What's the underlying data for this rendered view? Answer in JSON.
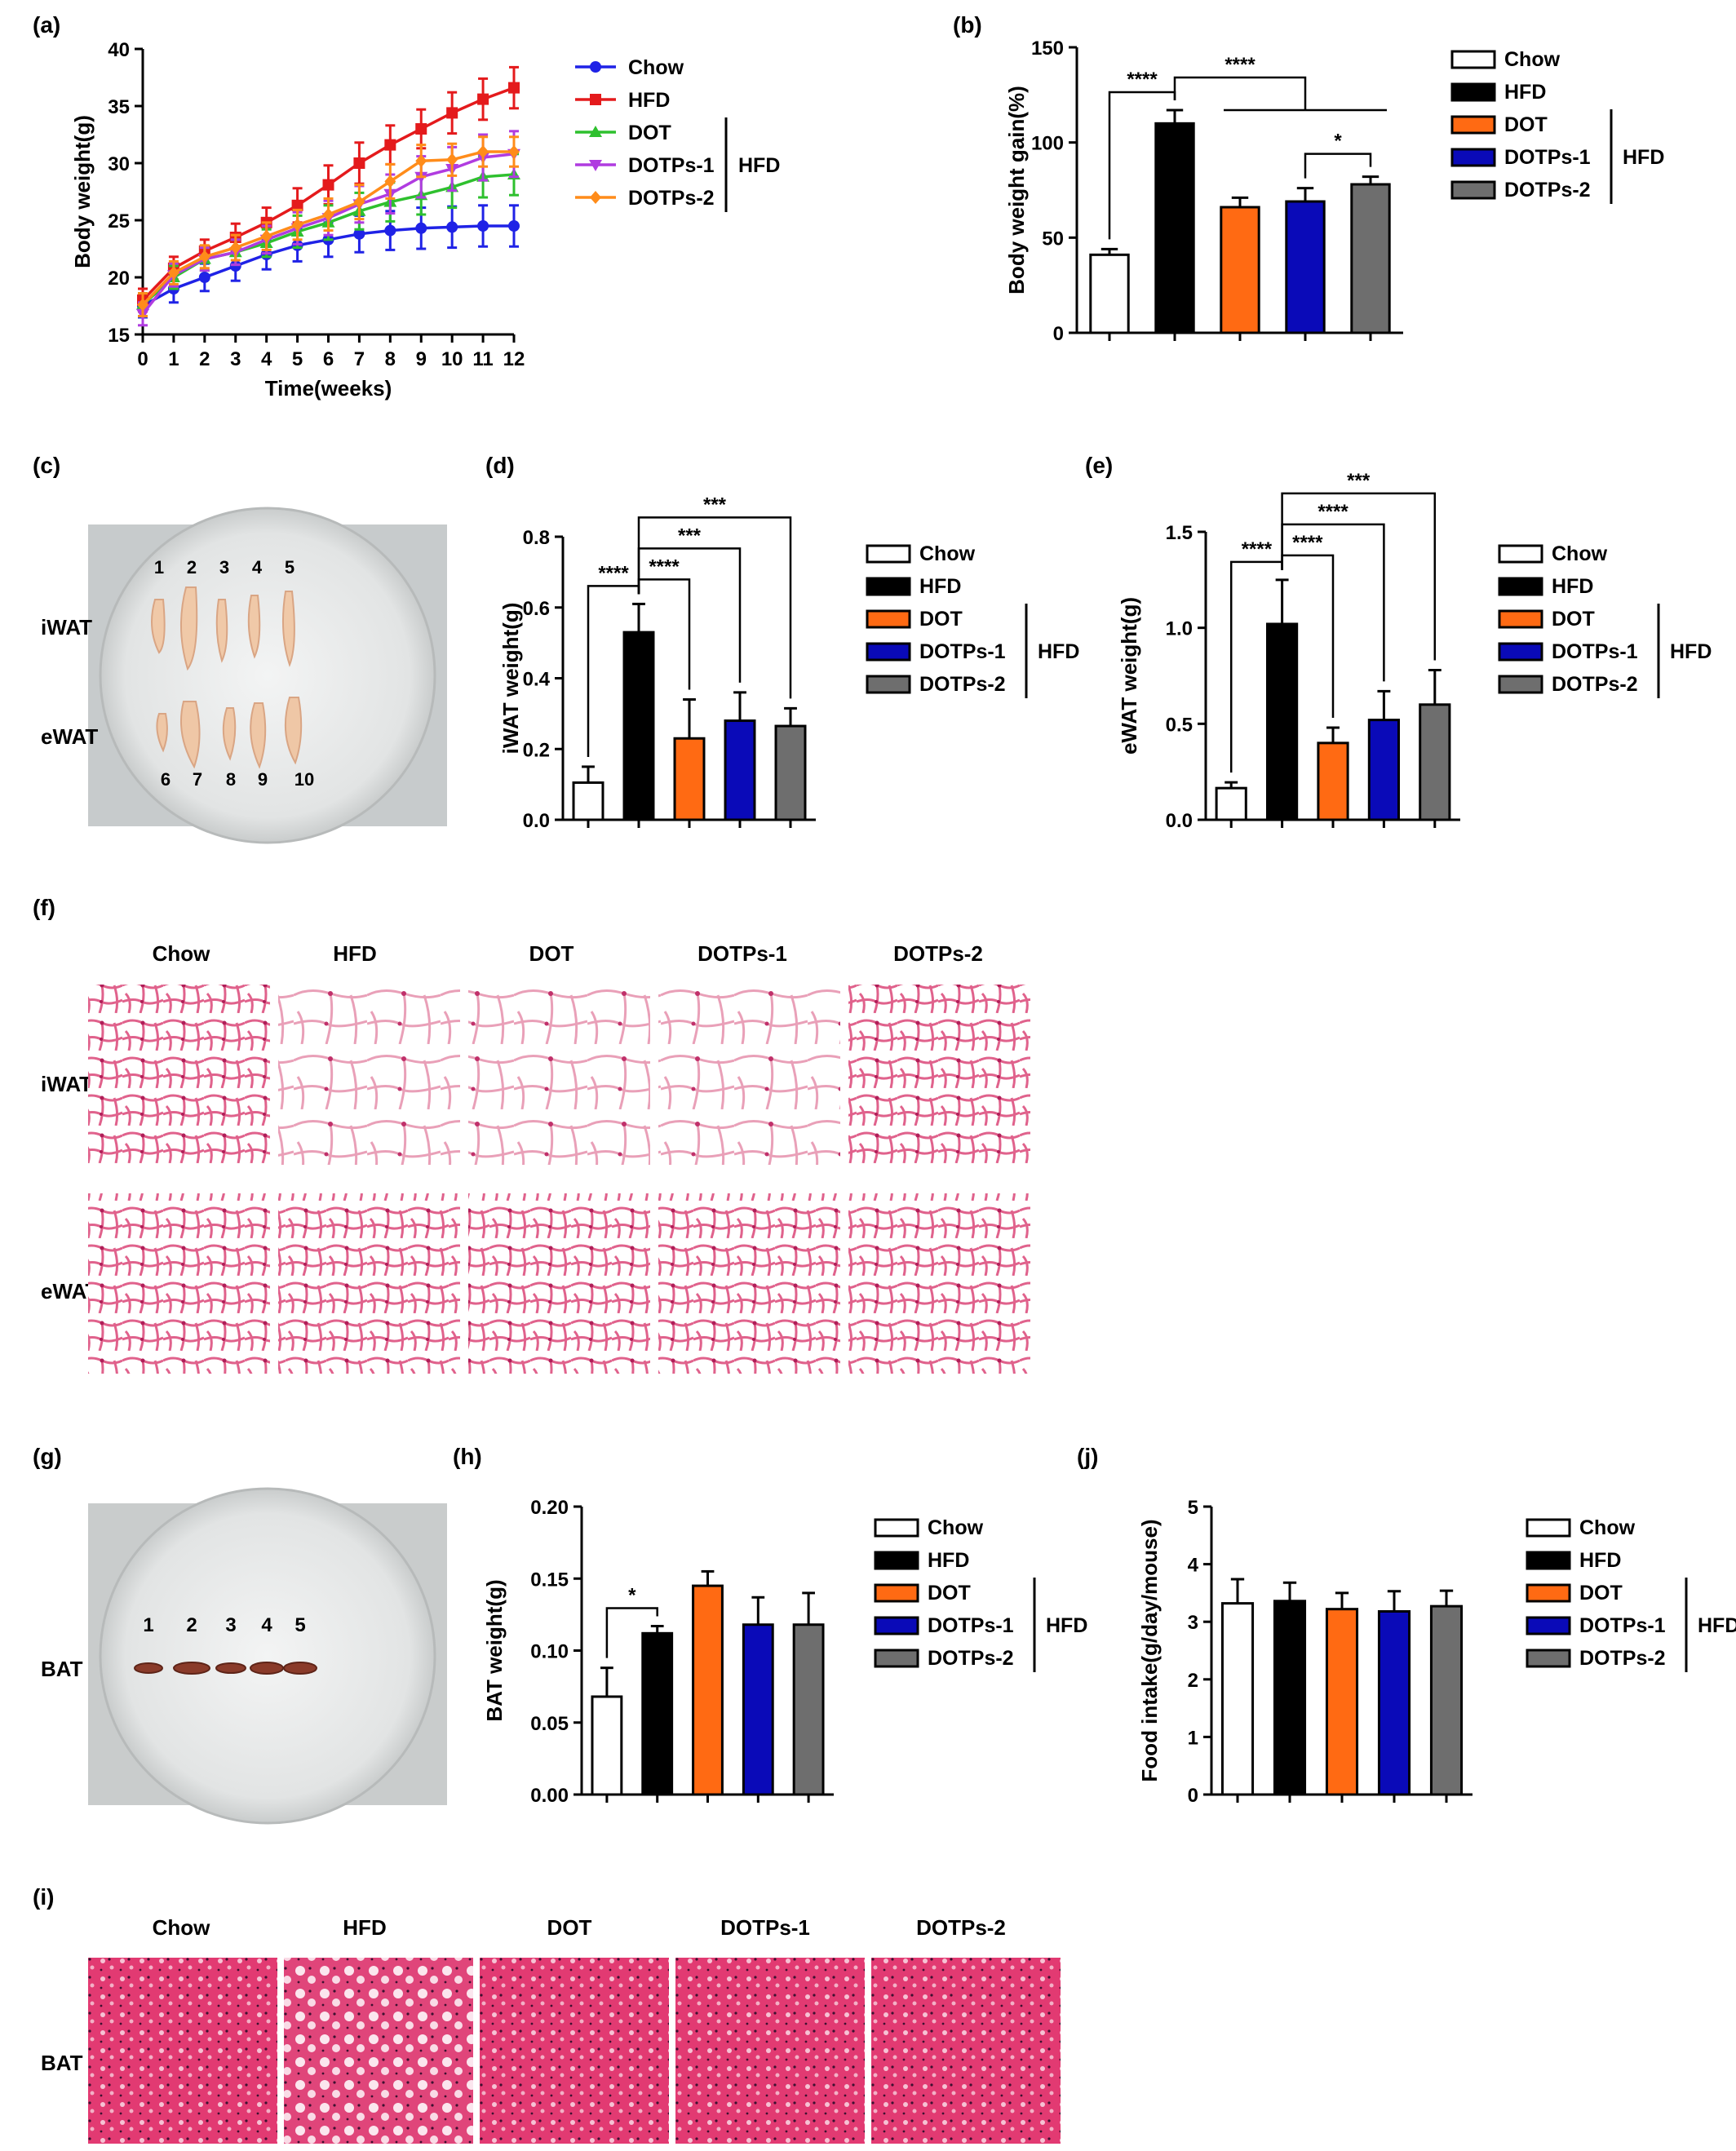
{
  "groups": [
    "Chow",
    "HFD",
    "DOT",
    "DOTPs-1",
    "DOTPs-2"
  ],
  "hfd_bracket_label": "HFD",
  "colors": {
    "Chow": "#ffffff",
    "HFD": "#000000",
    "DOT": "#ff6a13",
    "DOTPs-1": "#0a0ab8",
    "DOTPs-2": "#6e6e6e"
  },
  "line_colors": {
    "Chow": "#1f22e6",
    "HFD": "#e41a1c",
    "DOT": "#2ec02e",
    "DOTPs-1": "#b03ce0",
    "DOTPs-2": "#ff8c1a"
  },
  "panels": {
    "a": "(a)",
    "b": "(b)",
    "c": "(c)",
    "d": "(d)",
    "e": "(e)",
    "f": "(f)",
    "g": "(g)",
    "h": "(h)",
    "i": "(i)",
    "j": "(j)"
  },
  "photo_c": {
    "row_labels": [
      "iWAT",
      "eWAT"
    ],
    "top_numbers": [
      "1",
      "2",
      "3",
      "4",
      "5"
    ],
    "bottom_numbers": [
      "6",
      "7",
      "8",
      "9",
      "10"
    ]
  },
  "photo_g": {
    "row_label": "BAT",
    "numbers": [
      "1",
      "2",
      "3",
      "4",
      "5"
    ]
  },
  "histology_f": {
    "columns": [
      "Chow",
      "HFD",
      "DOT",
      "DOTPs-1",
      "DOTPs-2"
    ],
    "rows": [
      "iWAT",
      "eWAT"
    ]
  },
  "histology_i": {
    "columns": [
      "Chow",
      "HFD",
      "DOT",
      "DOTPs-1",
      "DOTPs-2"
    ],
    "rows": [
      "BAT"
    ]
  },
  "chart_data": [
    {
      "id": "a",
      "type": "line",
      "xlabel": "Time(weeks)",
      "ylabel": "Body weight(g)",
      "xlim": [
        0,
        12
      ],
      "ylim": [
        15,
        40
      ],
      "xticks": [
        "0",
        "1",
        "2",
        "3",
        "4",
        "5",
        "6",
        "7",
        "8",
        "9",
        "10",
        "11",
        "12"
      ],
      "yticks": [
        "15",
        "20",
        "25",
        "30",
        "35",
        "40"
      ],
      "x": [
        0,
        1,
        2,
        3,
        4,
        5,
        6,
        7,
        8,
        9,
        10,
        11,
        12
      ],
      "series": [
        {
          "name": "Chow",
          "marker": "circle",
          "values": [
            17.5,
            19,
            20,
            21,
            22,
            22.8,
            23.3,
            23.8,
            24.1,
            24.3,
            24.4,
            24.5,
            24.5
          ],
          "errors": [
            1,
            1.2,
            1.2,
            1.3,
            1.3,
            1.4,
            1.5,
            1.6,
            1.7,
            1.8,
            1.8,
            1.8,
            1.8
          ]
        },
        {
          "name": "HFD",
          "marker": "square",
          "values": [
            18,
            20.8,
            22.3,
            23.5,
            24.8,
            26.3,
            28.1,
            30,
            31.6,
            33,
            34.4,
            35.6,
            36.6
          ],
          "errors": [
            1,
            1,
            1,
            1.2,
            1.3,
            1.5,
            1.7,
            1.8,
            1.7,
            1.7,
            1.8,
            1.8,
            1.8
          ]
        },
        {
          "name": "DOT",
          "marker": "triangle-up",
          "values": [
            17.6,
            20,
            21.6,
            22.2,
            23,
            24,
            24.8,
            25.8,
            26.6,
            27.2,
            27.9,
            28.8,
            29
          ],
          "errors": [
            1,
            1,
            1,
            1.1,
            1.2,
            1.4,
            1.5,
            1.6,
            1.7,
            1.7,
            1.8,
            1.8,
            1.8
          ]
        },
        {
          "name": "DOTPs-1",
          "marker": "triangle-down",
          "values": [
            16.8,
            20.2,
            21.6,
            22.2,
            23.3,
            24.3,
            25.2,
            26.4,
            27.3,
            28.8,
            29.5,
            30.5,
            30.8
          ],
          "errors": [
            1,
            1,
            1,
            1.1,
            1.2,
            1.4,
            1.5,
            1.6,
            1.7,
            1.8,
            1.9,
            2,
            2
          ]
        },
        {
          "name": "DOTPs-2",
          "marker": "diamond",
          "values": [
            17.6,
            20.4,
            21.8,
            22.6,
            23.6,
            24.6,
            25.5,
            26.6,
            28.4,
            30.2,
            30.3,
            31,
            31
          ],
          "errors": [
            1,
            1,
            1,
            1.1,
            1.2,
            1.3,
            1.4,
            1.5,
            1.5,
            1.4,
            1.4,
            1.3,
            1.3
          ]
        }
      ]
    },
    {
      "id": "b",
      "type": "bar",
      "ylabel": "Body weight gain(%)",
      "ylim": [
        0,
        150
      ],
      "yticks": [
        "0",
        "50",
        "100",
        "150"
      ],
      "categories": [
        "Chow",
        "HFD",
        "DOT",
        "DOTPs-1",
        "DOTPs-2"
      ],
      "values": [
        41,
        110,
        66,
        69,
        78
      ],
      "errors": [
        3,
        7,
        5,
        7,
        4
      ],
      "significance": [
        {
          "from": 0,
          "to": 1,
          "label": "****"
        },
        {
          "from": 1,
          "to": [
            2,
            3,
            4
          ],
          "label": "****"
        },
        {
          "from": 3,
          "to": 4,
          "label": "*"
        }
      ]
    },
    {
      "id": "d",
      "type": "bar",
      "ylabel": "iWAT weight(g)",
      "ylim": [
        0,
        0.8
      ],
      "yticks": [
        "0.0",
        "0.2",
        "0.4",
        "0.6",
        "0.8"
      ],
      "categories": [
        "Chow",
        "HFD",
        "DOT",
        "DOTPs-1",
        "DOTPs-2"
      ],
      "values": [
        0.105,
        0.53,
        0.23,
        0.28,
        0.265
      ],
      "errors": [
        0.045,
        0.08,
        0.11,
        0.08,
        0.05
      ],
      "significance": [
        {
          "from": 0,
          "to": 1,
          "label": "****"
        },
        {
          "from": 1,
          "to": 2,
          "label": "****"
        },
        {
          "from": 1,
          "to": 3,
          "label": "***"
        },
        {
          "from": 1,
          "to": 4,
          "label": "***"
        }
      ]
    },
    {
      "id": "e",
      "type": "bar",
      "ylabel": "eWAT weight(g)",
      "ylim": [
        0,
        1.5
      ],
      "yticks": [
        "0.0",
        "0.5",
        "1.0",
        "1.5"
      ],
      "categories": [
        "Chow",
        "HFD",
        "DOT",
        "DOTPs-1",
        "DOTPs-2"
      ],
      "values": [
        0.165,
        1.02,
        0.4,
        0.52,
        0.6
      ],
      "errors": [
        0.03,
        0.23,
        0.08,
        0.15,
        0.18
      ],
      "significance": [
        {
          "from": 0,
          "to": 1,
          "label": "****"
        },
        {
          "from": 1,
          "to": 2,
          "label": "****"
        },
        {
          "from": 1,
          "to": 3,
          "label": "****"
        },
        {
          "from": 1,
          "to": 4,
          "label": "***"
        }
      ]
    },
    {
      "id": "h",
      "type": "bar",
      "ylabel": "BAT weight(g)",
      "ylim": [
        0,
        0.2
      ],
      "yticks": [
        "0.00",
        "0.05",
        "0.10",
        "0.15",
        "0.20"
      ],
      "categories": [
        "Chow",
        "HFD",
        "DOT",
        "DOTPs-1",
        "DOTPs-2"
      ],
      "values": [
        0.068,
        0.112,
        0.145,
        0.118,
        0.118
      ],
      "errors": [
        0.02,
        0.005,
        0.01,
        0.019,
        0.022
      ],
      "significance": [
        {
          "from": 0,
          "to": 1,
          "label": "*"
        }
      ]
    },
    {
      "id": "j",
      "type": "bar",
      "ylabel": "Food intake(g/day/mouse)",
      "ylim": [
        0,
        5
      ],
      "yticks": [
        "0",
        "1",
        "2",
        "3",
        "4",
        "5"
      ],
      "categories": [
        "Chow",
        "HFD",
        "DOT",
        "DOTPs-1",
        "DOTPs-2"
      ],
      "values": [
        3.32,
        3.36,
        3.22,
        3.18,
        3.27
      ],
      "errors": [
        0.42,
        0.32,
        0.28,
        0.35,
        0.27
      ],
      "significance": []
    }
  ]
}
